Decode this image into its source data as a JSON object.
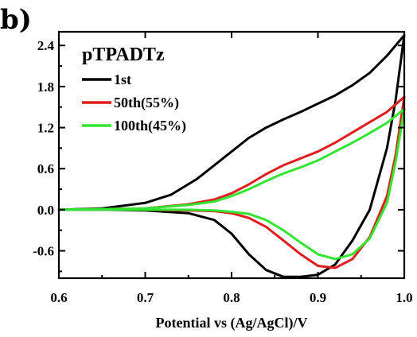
{
  "panel_label": "b)",
  "chart_data": {
    "type": "line",
    "title": "pTPADTz",
    "xlabel": "Potential vs (Ag/AgCl)/V",
    "ylabel": "",
    "xlim": [
      0.6,
      1.0
    ],
    "ylim": [
      -1.0,
      2.6
    ],
    "x_ticks": [
      0.6,
      0.7,
      0.8,
      0.9,
      1.0
    ],
    "x_tick_labels": [
      "0.6",
      "0.7",
      "0.8",
      "0.9",
      "1.0"
    ],
    "y_ticks": [
      -0.6,
      0.0,
      0.6,
      1.2,
      1.8,
      2.4
    ],
    "y_tick_labels": [
      "-0.6",
      "0.0",
      "0.6",
      "1.2",
      "1.8",
      "2.4"
    ],
    "grid": false,
    "legend_position": "top-left",
    "series": [
      {
        "name": "1st",
        "color": "#000000",
        "x": [
          0.6,
          0.65,
          0.7,
          0.73,
          0.76,
          0.78,
          0.8,
          0.82,
          0.84,
          0.86,
          0.88,
          0.9,
          0.92,
          0.94,
          0.96,
          0.98,
          1.0,
          0.99,
          0.98,
          0.96,
          0.94,
          0.92,
          0.9,
          0.88,
          0.86,
          0.84,
          0.82,
          0.8,
          0.78,
          0.75,
          0.7,
          0.65,
          0.6
        ],
        "y": [
          0.0,
          0.02,
          0.1,
          0.22,
          0.45,
          0.65,
          0.85,
          1.05,
          1.2,
          1.32,
          1.43,
          1.55,
          1.67,
          1.82,
          2.0,
          2.25,
          2.55,
          1.6,
          0.9,
          0.0,
          -0.45,
          -0.8,
          -0.95,
          -0.98,
          -0.98,
          -0.88,
          -0.65,
          -0.35,
          -0.15,
          -0.05,
          -0.01,
          0.0,
          0.0
        ]
      },
      {
        "name": "50th(55%)",
        "color": "#e01e1e",
        "x": [
          0.6,
          0.7,
          0.75,
          0.78,
          0.8,
          0.82,
          0.84,
          0.86,
          0.88,
          0.9,
          0.92,
          0.94,
          0.96,
          0.98,
          1.0,
          0.99,
          0.98,
          0.96,
          0.94,
          0.92,
          0.9,
          0.88,
          0.86,
          0.84,
          0.82,
          0.8,
          0.78,
          0.75,
          0.7,
          0.6
        ],
        "y": [
          0.0,
          0.02,
          0.08,
          0.15,
          0.24,
          0.37,
          0.52,
          0.65,
          0.75,
          0.85,
          0.98,
          1.13,
          1.28,
          1.43,
          1.65,
          0.8,
          0.2,
          -0.4,
          -0.72,
          -0.85,
          -0.82,
          -0.65,
          -0.45,
          -0.25,
          -0.12,
          -0.05,
          -0.02,
          -0.01,
          0.0,
          0.0
        ]
      },
      {
        "name": "100th(45%)",
        "color": "#33e533",
        "x": [
          0.6,
          0.7,
          0.75,
          0.78,
          0.8,
          0.82,
          0.84,
          0.86,
          0.88,
          0.9,
          0.92,
          0.94,
          0.96,
          0.98,
          1.0,
          0.99,
          0.98,
          0.96,
          0.94,
          0.92,
          0.9,
          0.88,
          0.86,
          0.84,
          0.82,
          0.8,
          0.78,
          0.75,
          0.7,
          0.6
        ],
        "y": [
          0.0,
          0.02,
          0.07,
          0.12,
          0.2,
          0.3,
          0.42,
          0.53,
          0.62,
          0.72,
          0.85,
          0.98,
          1.12,
          1.27,
          1.47,
          0.7,
          0.1,
          -0.42,
          -0.65,
          -0.72,
          -0.65,
          -0.48,
          -0.3,
          -0.15,
          -0.06,
          -0.03,
          -0.01,
          0.0,
          0.0,
          0.0
        ]
      }
    ]
  }
}
